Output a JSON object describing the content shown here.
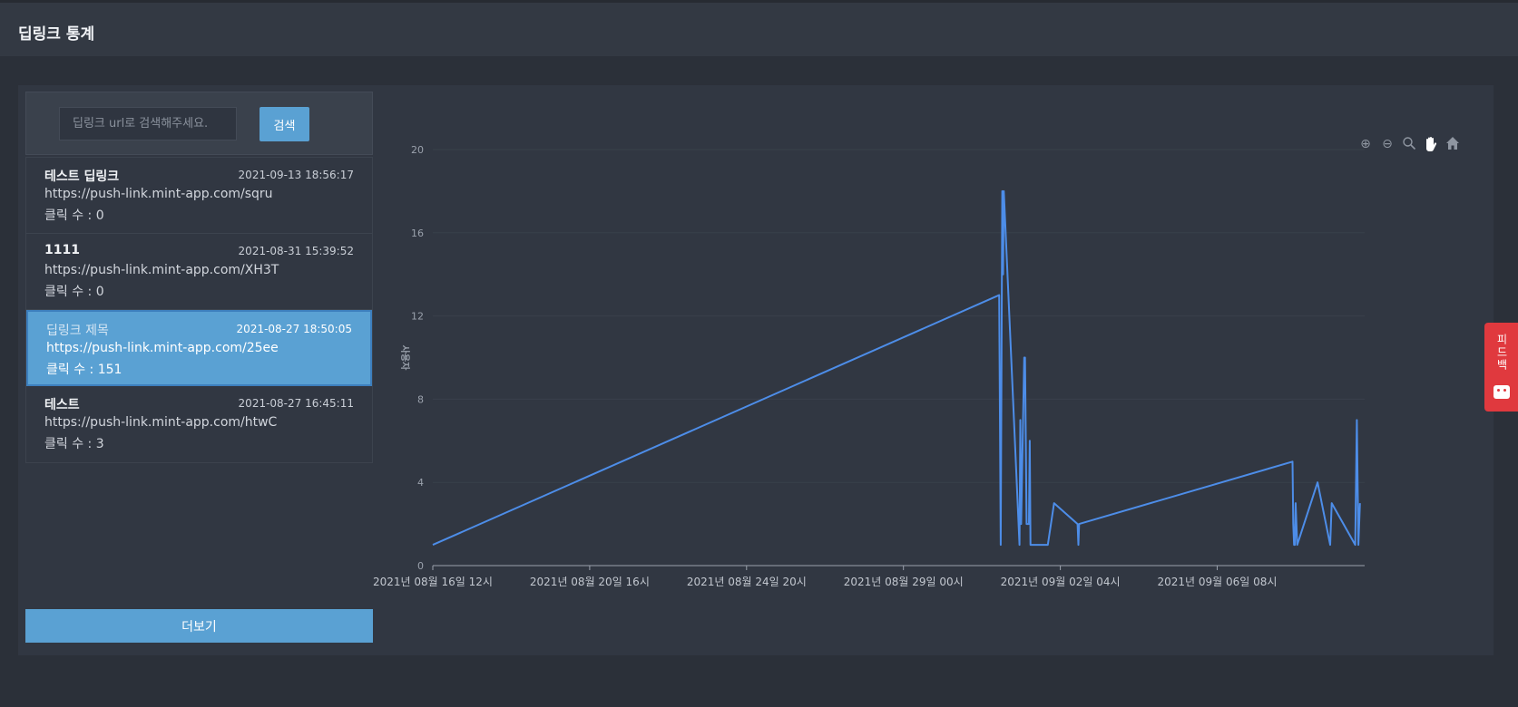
{
  "header": {
    "title": "딥링크 통계"
  },
  "search": {
    "placeholder": "딥링크 url로 검색해주세요.",
    "button_label": "검색"
  },
  "links": [
    {
      "title": "테스트 딥링크",
      "date": "2021-09-13 18:56:17",
      "url": "https://push-link.mint-app.com/sqru",
      "clicks": "클릭 수 : 0",
      "active": false
    },
    {
      "title": "1111",
      "date": "2021-08-31 15:39:52",
      "url": "https://push-link.mint-app.com/XH3T",
      "clicks": "클릭 수 : 0",
      "active": false
    },
    {
      "title": "딥링크 제목",
      "date": "2021-08-27 18:50:05",
      "url": "https://push-link.mint-app.com/25ee",
      "clicks": "클릭 수 : 151",
      "active": true
    },
    {
      "title": "테스트",
      "date": "2021-08-27 16:45:11",
      "url": "https://push-link.mint-app.com/htwC",
      "clicks": "클릭 수 : 3",
      "active": false
    }
  ],
  "more_button": {
    "label": "더보기"
  },
  "feedback": {
    "label": "피드백"
  },
  "toolbox": [
    "zoom-in-icon",
    "zoom-out-icon",
    "zoom-reset-icon",
    "pan-hand-icon",
    "home-icon"
  ],
  "chart_data": {
    "type": "line",
    "title": "",
    "xlabel": "",
    "ylabel": "사용자",
    "ylim": [
      0,
      20
    ],
    "y_ticks": [
      0,
      4,
      8,
      12,
      16,
      20
    ],
    "x_ticks": [
      "2021년 08월 16일 12시",
      "2021년 08월 20일 16시",
      "2021년 08월 24일 20시",
      "2021년 08월 29일 00시",
      "2021년 09월 02일 04시",
      "2021년 09월 06일 08시"
    ],
    "xlim": [
      "2021-08-16T12:00",
      "2021-09-10T06:00"
    ],
    "series": [
      {
        "name": "",
        "color": "#4d8de8",
        "points": [
          [
            "2021-08-16T12:00",
            1
          ],
          [
            "2021-08-31T13:00",
            13
          ],
          [
            "2021-08-31T14:00",
            1
          ],
          [
            "2021-08-31T15:00",
            18
          ],
          [
            "2021-08-31T15:30",
            14
          ],
          [
            "2021-08-31T16:00",
            18
          ],
          [
            "2021-09-01T02:00",
            1
          ],
          [
            "2021-09-01T02:30",
            7
          ],
          [
            "2021-09-01T03:00",
            2
          ],
          [
            "2021-09-01T05:00",
            10
          ],
          [
            "2021-09-01T05:30",
            10
          ],
          [
            "2021-09-01T06:30",
            2
          ],
          [
            "2021-09-01T08:00",
            2
          ],
          [
            "2021-09-01T08:30",
            6
          ],
          [
            "2021-09-01T09:00",
            1
          ],
          [
            "2021-09-01T20:00",
            1
          ],
          [
            "2021-09-02T00:00",
            3
          ],
          [
            "2021-09-02T15:00",
            2
          ],
          [
            "2021-09-02T15:30",
            1
          ],
          [
            "2021-09-02T16:00",
            2
          ],
          [
            "2021-09-08T08:00",
            5
          ],
          [
            "2021-09-08T08:30",
            2
          ],
          [
            "2021-09-08T09:00",
            1
          ],
          [
            "2021-09-08T09:30",
            1
          ],
          [
            "2021-09-08T10:00",
            3
          ],
          [
            "2021-09-08T11:00",
            1
          ],
          [
            "2021-09-09T00:00",
            4
          ],
          [
            "2021-09-09T08:00",
            1
          ],
          [
            "2021-09-09T09:00",
            3
          ],
          [
            "2021-09-10T00:00",
            1
          ],
          [
            "2021-09-10T01:00",
            7
          ],
          [
            "2021-09-10T02:00",
            1
          ],
          [
            "2021-09-10T03:00",
            3
          ]
        ]
      }
    ]
  }
}
